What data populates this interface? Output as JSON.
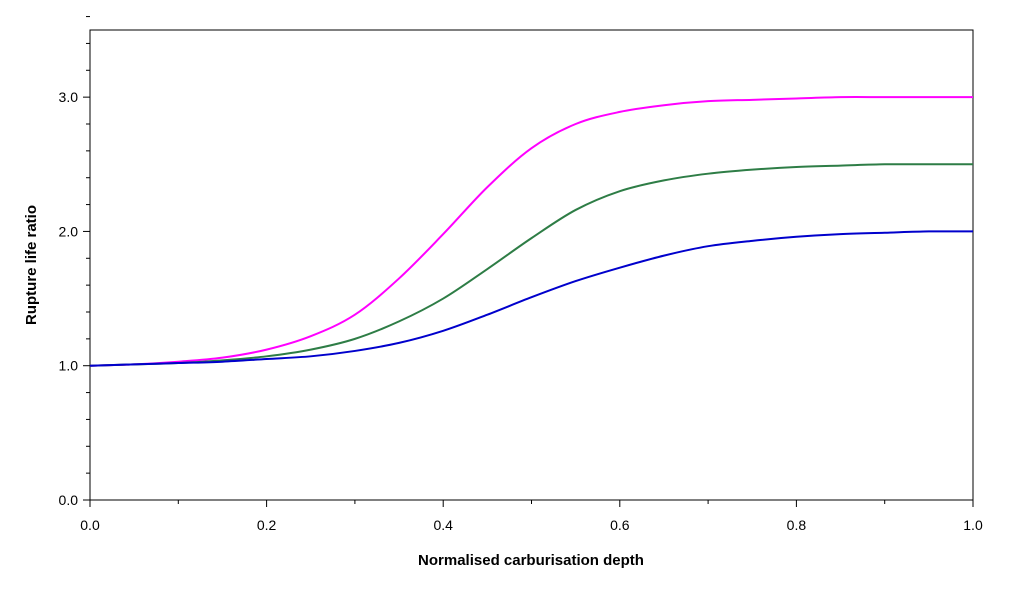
{
  "chart_data": {
    "type": "line",
    "title": "",
    "xlabel": "Normalised carburisation depth",
    "ylabel": "Rupture life ratio",
    "xlim": [
      0.0,
      1.0
    ],
    "ylim": [
      0.0,
      3.5
    ],
    "x_ticks": [
      "0.0",
      "0.2",
      "0.4",
      "0.6",
      "0.8",
      "1.0"
    ],
    "y_ticks": [
      "0.0",
      "1.0",
      "2.0",
      "3.0"
    ],
    "x_minor_step": 0.1,
    "y_minor_step": 0.2,
    "grid": false,
    "legend": "none",
    "series": [
      {
        "color": "#ff00ff",
        "x": [
          0.0,
          0.05,
          0.1,
          0.15,
          0.2,
          0.25,
          0.3,
          0.35,
          0.4,
          0.45,
          0.5,
          0.55,
          0.6,
          0.65,
          0.7,
          0.75,
          0.8,
          0.85,
          0.9,
          0.95,
          1.0
        ],
        "y": [
          1.0,
          1.01,
          1.03,
          1.06,
          1.12,
          1.22,
          1.38,
          1.65,
          1.98,
          2.33,
          2.62,
          2.8,
          2.89,
          2.94,
          2.97,
          2.98,
          2.99,
          3.0,
          3.0,
          3.0,
          3.0
        ]
      },
      {
        "color": "#2e7d46",
        "x": [
          0.0,
          0.05,
          0.1,
          0.15,
          0.2,
          0.25,
          0.3,
          0.35,
          0.4,
          0.45,
          0.5,
          0.55,
          0.6,
          0.65,
          0.7,
          0.75,
          0.8,
          0.85,
          0.9,
          0.95,
          1.0
        ],
        "y": [
          1.0,
          1.01,
          1.02,
          1.04,
          1.07,
          1.12,
          1.2,
          1.33,
          1.5,
          1.72,
          1.95,
          2.16,
          2.3,
          2.38,
          2.43,
          2.46,
          2.48,
          2.49,
          2.5,
          2.5,
          2.5
        ]
      },
      {
        "color": "#0000cc",
        "x": [
          0.0,
          0.05,
          0.1,
          0.15,
          0.2,
          0.25,
          0.3,
          0.35,
          0.4,
          0.45,
          0.5,
          0.55,
          0.6,
          0.65,
          0.7,
          0.75,
          0.8,
          0.85,
          0.9,
          0.95,
          1.0
        ],
        "y": [
          1.0,
          1.01,
          1.02,
          1.03,
          1.05,
          1.07,
          1.11,
          1.17,
          1.26,
          1.38,
          1.51,
          1.63,
          1.73,
          1.82,
          1.89,
          1.93,
          1.96,
          1.98,
          1.99,
          2.0,
          2.0
        ]
      }
    ]
  }
}
